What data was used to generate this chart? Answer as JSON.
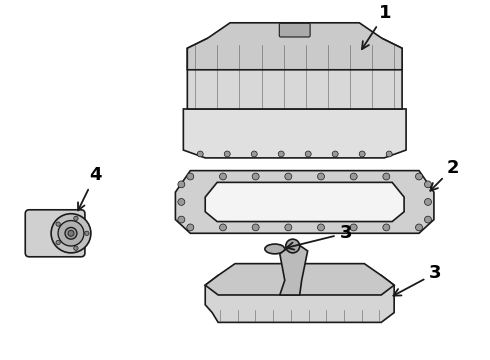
{
  "background_color": "#ffffff",
  "line_color": "#1a1a1a",
  "label_color": "#000000",
  "label_fontsize": 13,
  "arrow_color": "#000000"
}
